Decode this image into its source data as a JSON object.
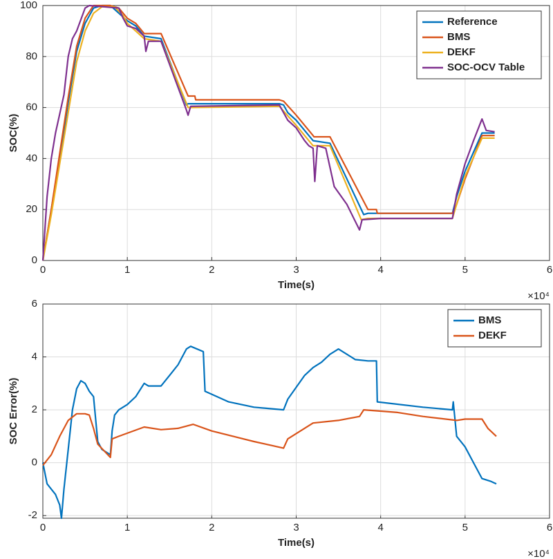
{
  "chart_data": [
    {
      "type": "line",
      "xlabel": "Time(s)",
      "ylabel": "SOC(%)",
      "x_multiplier": "×10⁴",
      "xlim": [
        0,
        6
      ],
      "xticks": [
        0,
        1,
        2,
        3,
        4,
        5,
        6
      ],
      "ylim": [
        0,
        100
      ],
      "yticks": [
        0,
        20,
        40,
        60,
        80,
        100
      ],
      "grid": true,
      "legend": "upper right",
      "series": [
        {
          "name": "Reference",
          "color": "#0072bd",
          "x": [
            0,
            0.1,
            0.2,
            0.3,
            0.4,
            0.5,
            0.6,
            0.7,
            0.8,
            0.9,
            1.0,
            1.1,
            1.2,
            1.4,
            1.7,
            1.72,
            2.8,
            2.85,
            2.9,
            3.0,
            3.1,
            3.2,
            3.4,
            3.8,
            3.85,
            4.85,
            4.9,
            5.0,
            5.2,
            5.35
          ],
          "values": [
            0,
            20,
            40,
            62,
            82,
            93,
            99,
            100,
            100,
            97,
            94,
            92,
            88,
            87,
            61,
            61.5,
            61.5,
            61,
            58,
            55,
            51,
            47,
            46,
            18,
            18.5,
            18.5,
            25,
            35,
            50,
            50
          ]
        },
        {
          "name": "BMS",
          "color": "#d95319",
          "x": [
            0,
            0.1,
            0.2,
            0.3,
            0.4,
            0.5,
            0.6,
            0.8,
            0.9,
            1.0,
            1.1,
            1.2,
            1.4,
            1.72,
            1.8,
            1.81,
            2.8,
            2.85,
            3.0,
            3.1,
            3.2,
            3.21,
            3.4,
            3.85,
            3.95,
            3.96,
            4.85,
            4.9,
            5.0,
            5.2,
            5.35
          ],
          "values": [
            0,
            20,
            42,
            64,
            84,
            95,
            100,
            100,
            99,
            95,
            93,
            89,
            89,
            64.5,
            64.5,
            63,
            63,
            62.5,
            57,
            53,
            49,
            48.5,
            48.5,
            20,
            20,
            18.5,
            18.5,
            22,
            32,
            49,
            49
          ]
        },
        {
          "name": "DEKF",
          "color": "#edb120",
          "x": [
            0,
            0.1,
            0.2,
            0.3,
            0.4,
            0.5,
            0.6,
            0.7,
            0.85,
            0.95,
            1.0,
            1.2,
            1.4,
            1.72,
            2.8,
            3.0,
            3.2,
            3.4,
            3.77,
            3.85,
            4.85,
            5.0,
            5.2,
            5.35
          ],
          "values": [
            0,
            18,
            38,
            58,
            78,
            90,
            97,
            99.5,
            99.5,
            96,
            93,
            87,
            86,
            60,
            60.5,
            53,
            45,
            45,
            16,
            16.5,
            16.5,
            33,
            48,
            48
          ]
        },
        {
          "name": "SOC-OCV Table",
          "color": "#7e2f8e",
          "x": [
            0,
            0.05,
            0.1,
            0.15,
            0.25,
            0.3,
            0.35,
            0.4,
            0.5,
            0.55,
            0.9,
            0.95,
            1.0,
            1.1,
            1.2,
            1.22,
            1.25,
            1.4,
            1.7,
            1.72,
            1.75,
            2.8,
            2.85,
            2.9,
            3.0,
            3.1,
            3.15,
            3.2,
            3.22,
            3.25,
            3.35,
            3.45,
            3.6,
            3.75,
            3.78,
            4.0,
            4.85,
            4.9,
            5.0,
            5.1,
            5.2,
            5.25,
            5.35
          ],
          "values": [
            0,
            25,
            40,
            50,
            65,
            80,
            87,
            90,
            99,
            100,
            99,
            95,
            92,
            91,
            88,
            82,
            86,
            86,
            59,
            57,
            60.5,
            61,
            58,
            55,
            52,
            47,
            45,
            44,
            31,
            45,
            44,
            29,
            22,
            12,
            16,
            16.5,
            16.5,
            26,
            38,
            47,
            55.5,
            51,
            50.5
          ]
        }
      ]
    },
    {
      "type": "line",
      "xlabel": "Time(s)",
      "ylabel": "SOC Error(%)",
      "x_multiplier": "×10⁴",
      "xlim": [
        0,
        6
      ],
      "xticks": [
        0,
        1,
        2,
        3,
        4,
        5,
        6
      ],
      "ylim": [
        -2.1,
        6
      ],
      "yticks": [
        -2,
        0,
        2,
        4,
        6
      ],
      "grid": true,
      "legend": "upper right",
      "series": [
        {
          "name": "BMS",
          "color": "#0072bd",
          "x": [
            0,
            0.05,
            0.1,
            0.15,
            0.2,
            0.22,
            0.25,
            0.3,
            0.35,
            0.4,
            0.45,
            0.5,
            0.55,
            0.6,
            0.65,
            0.7,
            0.8,
            0.82,
            0.85,
            0.9,
            1.0,
            1.1,
            1.2,
            1.25,
            1.4,
            1.5,
            1.6,
            1.7,
            1.75,
            1.9,
            1.92,
            2.2,
            2.5,
            2.85,
            2.9,
            3.1,
            3.2,
            3.3,
            3.4,
            3.5,
            3.6,
            3.7,
            3.85,
            3.95,
            3.96,
            4.5,
            4.85,
            4.86,
            4.9,
            5.0,
            5.1,
            5.2,
            5.3,
            5.37
          ],
          "values": [
            0,
            -0.8,
            -1,
            -1.2,
            -1.6,
            -2.1,
            -1,
            0.5,
            2,
            2.8,
            3.1,
            3,
            2.7,
            2.5,
            0.8,
            0.5,
            0.3,
            1.2,
            1.8,
            2,
            2.2,
            2.5,
            3,
            2.9,
            2.9,
            3.3,
            3.7,
            4.3,
            4.4,
            4.2,
            2.7,
            2.3,
            2.1,
            2,
            2.4,
            3.3,
            3.6,
            3.8,
            4.1,
            4.3,
            4.1,
            3.9,
            3.85,
            3.85,
            2.3,
            2.1,
            2,
            2.3,
            1,
            0.6,
            0,
            -0.6,
            -0.7,
            -0.8
          ]
        },
        {
          "name": "DEKF",
          "color": "#d95319",
          "x": [
            0,
            0.1,
            0.2,
            0.3,
            0.4,
            0.5,
            0.55,
            0.6,
            0.65,
            0.8,
            0.82,
            0.9,
            1.2,
            1.4,
            1.6,
            1.78,
            2.0,
            2.5,
            2.85,
            2.9,
            3.2,
            3.5,
            3.75,
            3.8,
            4.2,
            4.5,
            4.9,
            5.0,
            5.2,
            5.27,
            5.37
          ],
          "values": [
            -0.1,
            0.3,
            1,
            1.6,
            1.85,
            1.85,
            1.8,
            1.3,
            0.7,
            0.2,
            0.9,
            1,
            1.35,
            1.25,
            1.3,
            1.45,
            1.2,
            0.8,
            0.55,
            0.9,
            1.5,
            1.6,
            1.75,
            2,
            1.9,
            1.75,
            1.6,
            1.65,
            1.65,
            1.3,
            1
          ]
        }
      ]
    }
  ]
}
